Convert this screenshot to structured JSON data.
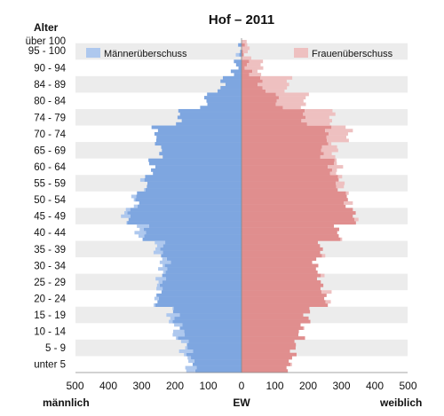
{
  "chart_data": {
    "type": "bar",
    "title": "Hof – 2011",
    "y_axis_title": "Alter",
    "age_tick_labels": [
      "über 100",
      "95 - 100",
      "90 - 94",
      "84 - 89",
      "80 - 84",
      "74 - 79",
      "70 - 74",
      "65 - 69",
      "60 - 64",
      "55 - 59",
      "50 - 54",
      "45 - 49",
      "40 - 44",
      "35 - 39",
      "30 - 34",
      "25 - 29",
      "20 - 24",
      "15 - 19",
      "10 - 14",
      "5 - 9",
      "unter 5"
    ],
    "x_tick_labels": [
      "500",
      "400",
      "300",
      "200",
      "100",
      "0",
      "100",
      "200",
      "300",
      "400",
      "500"
    ],
    "xlabel_left": "männlich",
    "xlabel_center": "EW",
    "xlabel_right": "weiblich",
    "xlim": [
      -500,
      500
    ],
    "legend": {
      "male_surplus": "Männerüberschuss",
      "female_surplus": "Frauenüberschuss"
    },
    "colors": {
      "male": "#7ea6e0",
      "male_surplus": "#aec8ee",
      "female": "#e08e8e",
      "female_surplus": "#eec0c0",
      "band": "#ececec"
    },
    "age_group_totals": {
      "unter 5": {
        "male": 160,
        "female": 145
      },
      "5 - 9": {
        "male": 175,
        "female": 160
      },
      "10 - 14": {
        "male": 200,
        "female": 180
      },
      "15 - 19": {
        "male": 215,
        "female": 200
      },
      "20 - 24": {
        "male": 255,
        "female": 260
      },
      "25 - 29": {
        "male": 250,
        "female": 240
      },
      "30 - 34": {
        "male": 240,
        "female": 225
      },
      "35 - 39": {
        "male": 255,
        "female": 240
      },
      "40 - 44": {
        "male": 310,
        "female": 290
      },
      "45 - 49": {
        "male": 350,
        "female": 340
      },
      "50 - 54": {
        "male": 320,
        "female": 320
      },
      "55 - 59": {
        "male": 290,
        "female": 300
      },
      "60 - 64": {
        "male": 270,
        "female": 290
      },
      "65 - 69": {
        "male": 245,
        "female": 280
      },
      "70 - 74": {
        "male": 260,
        "female": 320
      },
      "74 - 79": {
        "male": 190,
        "female": 270
      },
      "80 - 84": {
        "male": 110,
        "female": 190
      },
      "84 - 89": {
        "male": 60,
        "female": 140
      },
      "90 - 94": {
        "male": 20,
        "female": 60
      },
      "95 - 100": {
        "male": 5,
        "female": 20
      },
      "über 100": {
        "male": 1,
        "female": 4
      }
    }
  }
}
